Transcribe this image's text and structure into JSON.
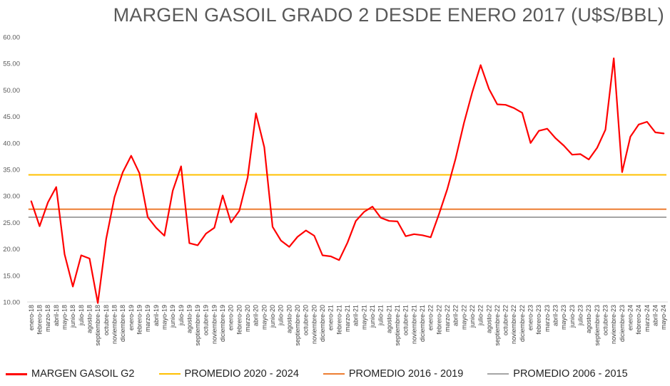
{
  "chart_data": {
    "type": "line",
    "title": "MARGEN GASOIL GRADO 2 DESDE ENERO 2017 (U$S/BBL)",
    "xlabel": "",
    "ylabel": "",
    "ylim": [
      10,
      60
    ],
    "yticks": [
      "10.00",
      "15.00",
      "20.00",
      "25.00",
      "30.00",
      "35.00",
      "40.00",
      "45.00",
      "50.00",
      "55.00",
      "60.00"
    ],
    "grid": false,
    "legend_position": "bottom",
    "categories": [
      "enero-18",
      "febrero-18",
      "marzo-18",
      "abril-18",
      "mayo-18",
      "junio-18",
      "julio-18",
      "agosto-18",
      "septiembre-18",
      "octubre-18",
      "noviembre-18",
      "diciembre-18",
      "enero-19",
      "febrero-19",
      "marzo-19",
      "abril-19",
      "mayo-19",
      "junio-19",
      "julio-19",
      "agosto-19",
      "septiembre-19",
      "octubre-19",
      "noviembre-19",
      "diciembre-19",
      "enero-20",
      "febrero-20",
      "marzo-20",
      "abril-20",
      "mayo-20",
      "junio-20",
      "julio-20",
      "agosto-20",
      "septiembre-20",
      "octubre-20",
      "noviembre-20",
      "diciembre-20",
      "enero-21",
      "febrero-21",
      "marzo-21",
      "abril-21",
      "mayo-21",
      "junio-21",
      "julio-21",
      "agosto-21",
      "septiembre-21",
      "octubre-21",
      "noviembre-21",
      "diciembre-21",
      "enero-22",
      "febrero-22",
      "marzo-22",
      "abril-22",
      "mayo-22",
      "junio-22",
      "julio-22",
      "agosto-22",
      "septiembre-22",
      "octubre-22",
      "noviembre-22",
      "diciembre-22",
      "enero-23",
      "febrero-23",
      "marzo-23",
      "abril-23",
      "mayo-23",
      "junio-23",
      "julio-23",
      "agosto-23",
      "septiembre-23",
      "octubre-23",
      "noviembre-23",
      "diciembre-23",
      "enero-24",
      "febrero-24",
      "marzo-24",
      "abril-24",
      "mayo-24"
    ],
    "series": [
      {
        "name": "MARGEN GASOIL G2",
        "color": "#ff0000",
        "style": "line",
        "values": [
          29.0,
          24.3,
          28.8,
          31.7,
          19.0,
          12.9,
          18.8,
          18.2,
          9.8,
          21.9,
          29.8,
          34.5,
          37.6,
          34.3,
          26.0,
          24.0,
          22.5,
          31.0,
          35.6,
          21.1,
          20.7,
          22.9,
          24.0,
          30.1,
          25.0,
          27.2,
          33.5,
          45.6,
          39.2,
          24.2,
          21.6,
          20.4,
          22.3,
          23.5,
          22.5,
          18.8,
          18.6,
          17.9,
          21.2,
          25.3,
          27.0,
          28.0,
          25.9,
          25.3,
          25.2,
          22.4,
          22.8,
          22.6,
          22.2,
          26.6,
          31.3,
          37.1,
          43.8,
          49.6,
          54.7,
          50.2,
          47.3,
          47.2,
          46.6,
          45.7,
          40.0,
          42.3,
          42.7,
          40.9,
          39.5,
          37.8,
          37.9,
          36.9,
          39.1,
          42.5,
          56.0,
          34.5,
          41.2,
          43.5,
          44.0,
          42.0,
          41.8
        ]
      },
      {
        "name": "PROMEDIO 2020 - 2024",
        "color": "#ffc000",
        "style": "constant",
        "value": 34.0
      },
      {
        "name": "PROMEDIO 2016 - 2019",
        "color": "#ed7d31",
        "style": "constant",
        "value": 27.5
      },
      {
        "name": "PROMEDIO 2006 - 2015",
        "color": "#a5a5a5",
        "style": "constant",
        "value": 26.0
      }
    ]
  }
}
